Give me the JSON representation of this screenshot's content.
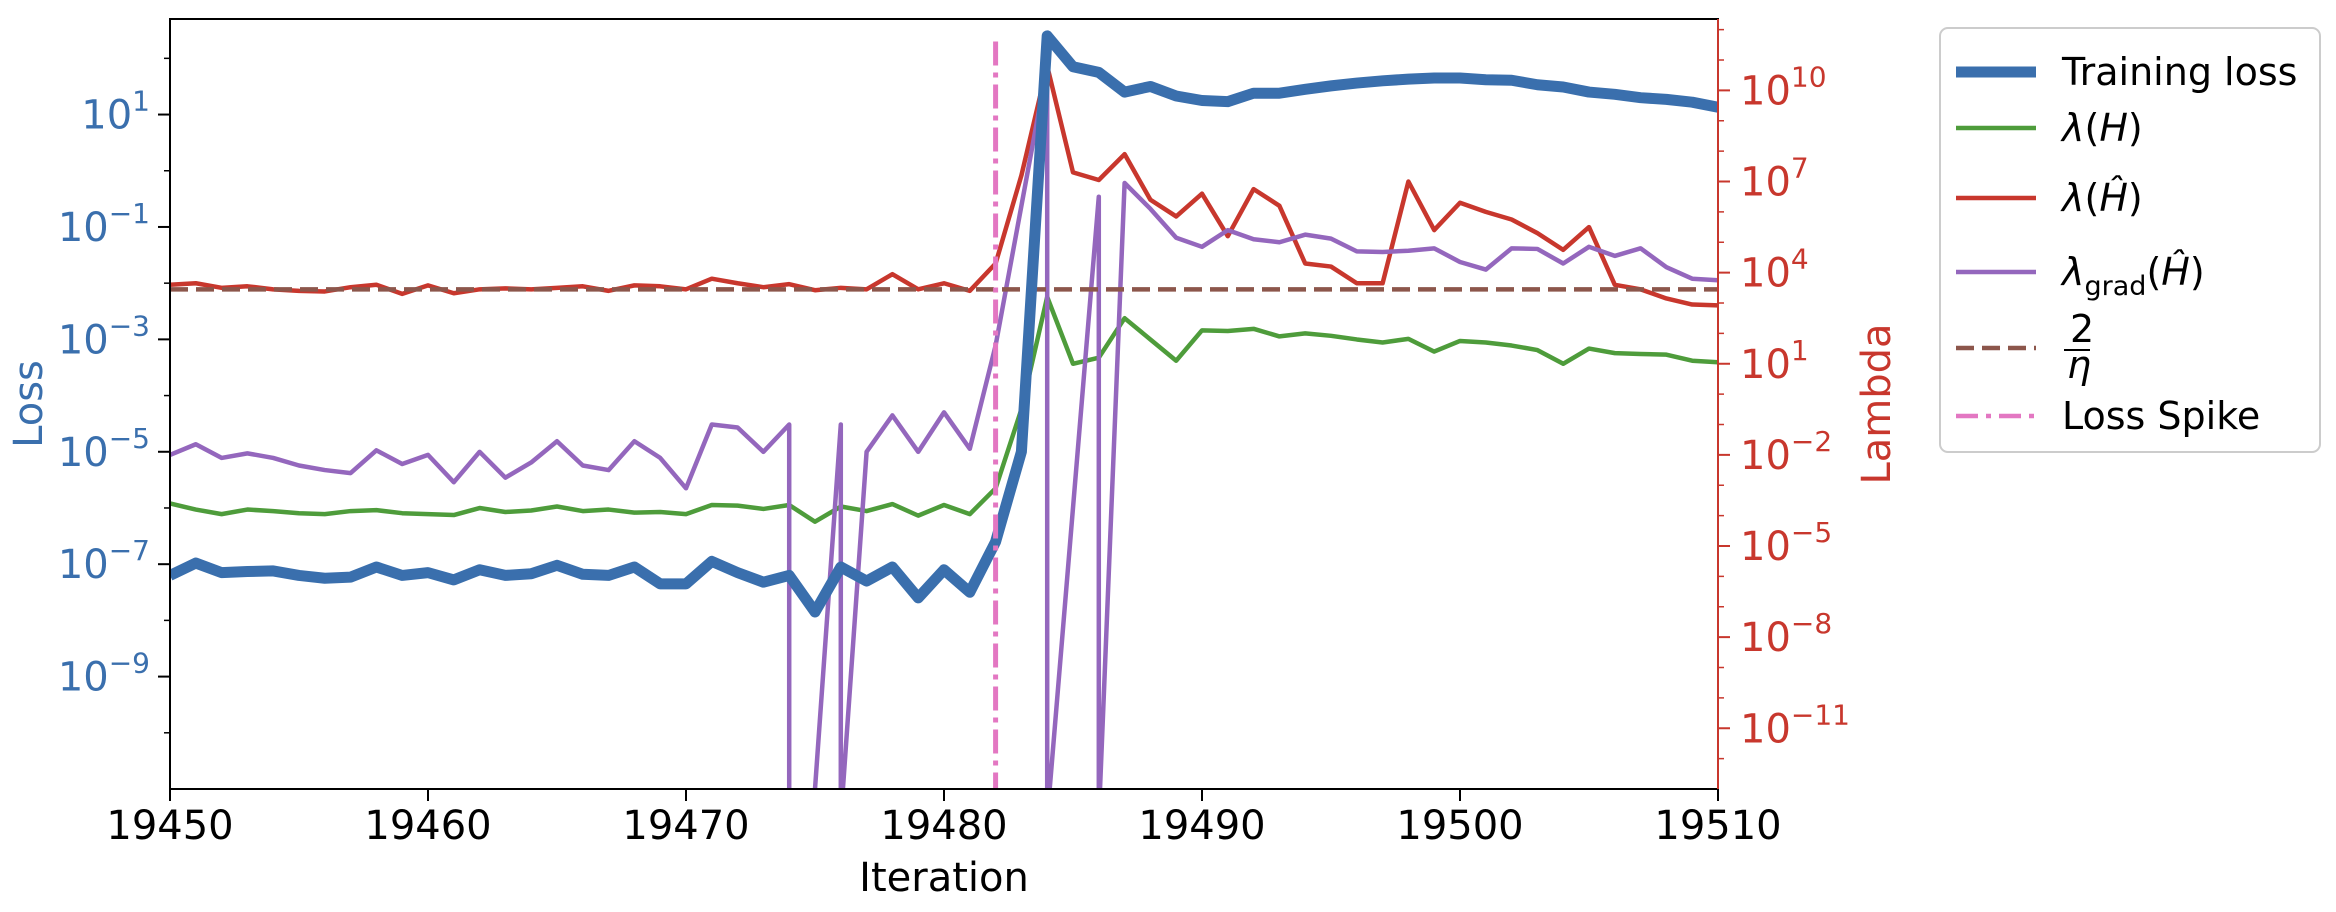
{
  "chart_data": {
    "type": "line",
    "xlabel": "Iteration",
    "ylabel_left": "Loss",
    "ylabel_right": "Lambda",
    "xlim": [
      19450,
      19510
    ],
    "x_ticks": [
      19450,
      19460,
      19470,
      19480,
      19490,
      19500,
      19510
    ],
    "x_tick_labels": [
      "19450",
      "19460",
      "19470",
      "19480",
      "19490",
      "19500",
      "19510"
    ],
    "left_axis": {
      "scale": "log",
      "ylim_exp": [
        -11.0,
        2.7
      ],
      "tick_exponents": [
        1,
        -1,
        -3,
        -5,
        -7,
        -9
      ],
      "tick_base": "10",
      "tick_exp_labels": [
        "1",
        "−1",
        "−3",
        "−5",
        "−7",
        "−9"
      ],
      "color": "#3a6fad"
    },
    "right_axis": {
      "scale": "log",
      "ylim_exp": [
        -13.0,
        12.35
      ],
      "tick_exponents": [
        10,
        7,
        4,
        1,
        -2,
        -5,
        -8,
        -11
      ],
      "tick_base": "10",
      "tick_exp_labels": [
        "10",
        "7",
        "4",
        "1",
        "−2",
        "−5",
        "−8",
        "−11"
      ],
      "color": "#c8372d"
    },
    "x": [
      19450,
      19451,
      19452,
      19453,
      19454,
      19455,
      19456,
      19457,
      19458,
      19459,
      19460,
      19461,
      19462,
      19463,
      19464,
      19465,
      19466,
      19467,
      19468,
      19469,
      19470,
      19471,
      19472,
      19473,
      19474,
      19475,
      19476,
      19477,
      19478,
      19479,
      19480,
      19481,
      19482,
      19483,
      19484,
      19485,
      19486,
      19487,
      19488,
      19489,
      19490,
      19491,
      19492,
      19493,
      19494,
      19495,
      19496,
      19497,
      19498,
      19499,
      19500,
      19501,
      19502,
      19503,
      19504,
      19505,
      19506,
      19507,
      19508,
      19509,
      19510
    ],
    "series": [
      {
        "name": "Training loss",
        "axis": "left",
        "color": "#3a6fad",
        "style": "solid",
        "width": "thick",
        "log10_values": [
          -7.2,
          -6.98,
          -7.15,
          -7.13,
          -7.12,
          -7.2,
          -7.25,
          -7.23,
          -7.05,
          -7.2,
          -7.15,
          -7.28,
          -7.1,
          -7.2,
          -7.17,
          -7.02,
          -7.18,
          -7.2,
          -7.05,
          -7.35,
          -7.35,
          -6.95,
          -7.15,
          -7.32,
          -7.2,
          -7.85,
          -7.05,
          -7.3,
          -7.05,
          -7.6,
          -7.1,
          -7.5,
          -6.6,
          -5.0,
          2.4,
          1.85,
          1.75,
          1.4,
          1.5,
          1.33,
          1.25,
          1.23,
          1.38,
          1.38,
          1.45,
          1.51,
          1.56,
          1.6,
          1.63,
          1.65,
          1.65,
          1.62,
          1.61,
          1.53,
          1.49,
          1.4,
          1.36,
          1.3,
          1.27,
          1.22,
          1.13
        ]
      },
      {
        "name": "λ(H)",
        "axis": "right",
        "color": "#4e9c3b",
        "style": "solid",
        "width": "thin",
        "log10_values": [
          -3.6,
          -3.8,
          -3.95,
          -3.8,
          -3.85,
          -3.92,
          -3.95,
          -3.85,
          -3.82,
          -3.92,
          -3.95,
          -3.98,
          -3.75,
          -3.88,
          -3.83,
          -3.7,
          -3.85,
          -3.8,
          -3.9,
          -3.88,
          -3.95,
          -3.65,
          -3.67,
          -3.78,
          -3.65,
          -4.2,
          -3.7,
          -3.85,
          -3.62,
          -4.0,
          -3.65,
          -3.95,
          -3.1,
          -0.5,
          3.2,
          1.0,
          1.2,
          2.5,
          1.8,
          1.1,
          2.1,
          2.08,
          2.15,
          1.9,
          2.0,
          1.92,
          1.8,
          1.7,
          1.82,
          1.4,
          1.75,
          1.7,
          1.6,
          1.45,
          1.0,
          1.5,
          1.35,
          1.32,
          1.3,
          1.1,
          1.05
        ]
      },
      {
        "name": "λ(Ĥ)",
        "axis": "right",
        "color": "#c8372d",
        "style": "solid",
        "width": "thin",
        "log10_values": [
          3.6,
          3.65,
          3.5,
          3.55,
          3.45,
          3.4,
          3.38,
          3.52,
          3.6,
          3.3,
          3.58,
          3.32,
          3.45,
          3.48,
          3.45,
          3.5,
          3.55,
          3.4,
          3.58,
          3.55,
          3.45,
          3.8,
          3.65,
          3.52,
          3.62,
          3.42,
          3.5,
          3.45,
          3.95,
          3.45,
          3.65,
          3.4,
          4.3,
          7.2,
          10.8,
          7.3,
          7.05,
          7.9,
          6.4,
          5.85,
          6.6,
          5.2,
          6.75,
          6.2,
          4.3,
          4.2,
          3.65,
          3.65,
          7.0,
          5.4,
          6.3,
          6.0,
          5.75,
          5.3,
          4.75,
          5.5,
          3.6,
          3.45,
          3.15,
          2.95,
          2.92
        ]
      },
      {
        "name": "λ_grad(Ĥ)",
        "axis": "right",
        "color": "#9467bd",
        "style": "solid",
        "width": "thin",
        "log10_values": [
          -2.0,
          -1.65,
          -2.1,
          -1.95,
          -2.1,
          -2.35,
          -2.5,
          -2.6,
          -1.85,
          -2.3,
          -2.0,
          -2.9,
          -1.9,
          -2.75,
          -2.25,
          -1.55,
          -2.35,
          -2.5,
          -1.55,
          -2.1,
          -3.1,
          -1.0,
          -1.1,
          -1.9,
          -1.0,
          -13.0,
          -1.0,
          -1.9,
          -0.7,
          -1.9,
          -0.6,
          -1.8,
          1.6,
          null,
          10.8,
          null,
          6.5,
          6.95,
          6.1,
          5.15,
          4.85,
          5.4,
          5.1,
          5.0,
          5.25,
          5.12,
          4.7,
          4.68,
          4.72,
          4.8,
          4.35,
          4.1,
          4.8,
          4.78,
          4.3,
          4.85,
          4.55,
          4.8,
          4.18,
          3.8,
          3.75
        ],
        "dropouts_to_bottom": [
          19474,
          19476,
          19484,
          19486
        ]
      },
      {
        "name": "2/η",
        "axis": "right",
        "color": "#8c564b",
        "style": "dashed",
        "width": "thin",
        "constant_log10": 3.45
      }
    ],
    "vline": {
      "name": "Loss Spike",
      "x": 19482,
      "color": "#e377c2",
      "style": "dash-dot",
      "top_log10_left": 2.3
    },
    "legend": {
      "placement": "outside-right",
      "entries": [
        "Training loss",
        "λ(H)",
        "λ(Ĥ)",
        "λ_grad(Ĥ)",
        "2/η",
        "Loss Spike"
      ]
    }
  }
}
